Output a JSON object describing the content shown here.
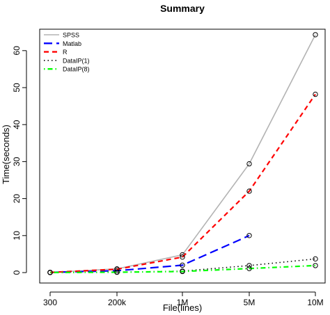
{
  "chart_data": {
    "type": "line",
    "title": "Summary",
    "xlabel": "File(lines)",
    "ylabel": "Time(seconds)",
    "categories": [
      "300",
      "200k",
      "1M",
      "5M",
      "10M"
    ],
    "ylim": [
      0,
      66
    ],
    "yticks": [
      0,
      10,
      20,
      30,
      40,
      50,
      60
    ],
    "grid": false,
    "legend_position": "top-left",
    "series": [
      {
        "name": "SPSS",
        "color": "#b3b3b3",
        "dash": "solid",
        "values": [
          0.05,
          1.0,
          4.8,
          29.4,
          64.3
        ]
      },
      {
        "name": "Matlab",
        "color": "#0000ff",
        "dash": "long",
        "values": [
          0.05,
          0.5,
          2.0,
          10.0,
          null
        ]
      },
      {
        "name": "R",
        "color": "#ff0000",
        "dash": "dashed",
        "values": [
          0.05,
          0.9,
          4.2,
          22.0,
          48.2
        ]
      },
      {
        "name": "DataIP(1)",
        "color": "#000000",
        "dash": "dotted",
        "values": [
          0.02,
          0.1,
          0.4,
          1.9,
          3.7
        ]
      },
      {
        "name": "DataIP(8)",
        "color": "#00ff00",
        "dash": "dotdash",
        "values": [
          0.02,
          0.1,
          0.3,
          1.1,
          1.9
        ]
      }
    ]
  }
}
